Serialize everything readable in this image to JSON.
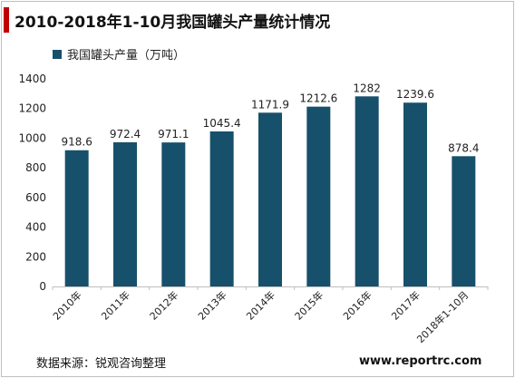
{
  "header": {
    "title": "2010-2018年1-10月我国罐头产量统计情况"
  },
  "footer": {
    "source": "数据来源：锐观咨询整理",
    "website": "www.reportrc.com"
  },
  "colors": {
    "bar": "#17506b",
    "title_accent": "#c00000"
  },
  "chart_data": {
    "type": "bar",
    "title": "2010-2018年1-10月我国罐头产量统计情况",
    "categories": [
      "2010年",
      "2011年",
      "2012年",
      "2013年",
      "2014年",
      "2015年",
      "2016年",
      "2017年",
      "2018年1-10月"
    ],
    "series": [
      {
        "name": "我国罐头产量（万吨）",
        "values": [
          918.6,
          972.4,
          971.1,
          1045.4,
          1171.9,
          1212.6,
          1282,
          1239.6,
          878.4
        ]
      }
    ],
    "data_labels": [
      "918.6",
      "972.4",
      "971.1",
      "1045.4",
      "1171.9",
      "1212.6",
      "1282",
      "1239.6",
      "878.4"
    ],
    "yticks": [
      0,
      200,
      400,
      600,
      800,
      1000,
      1200,
      1400
    ],
    "ylim": [
      0,
      1400
    ],
    "grid": false,
    "legend_position": "top-left"
  }
}
